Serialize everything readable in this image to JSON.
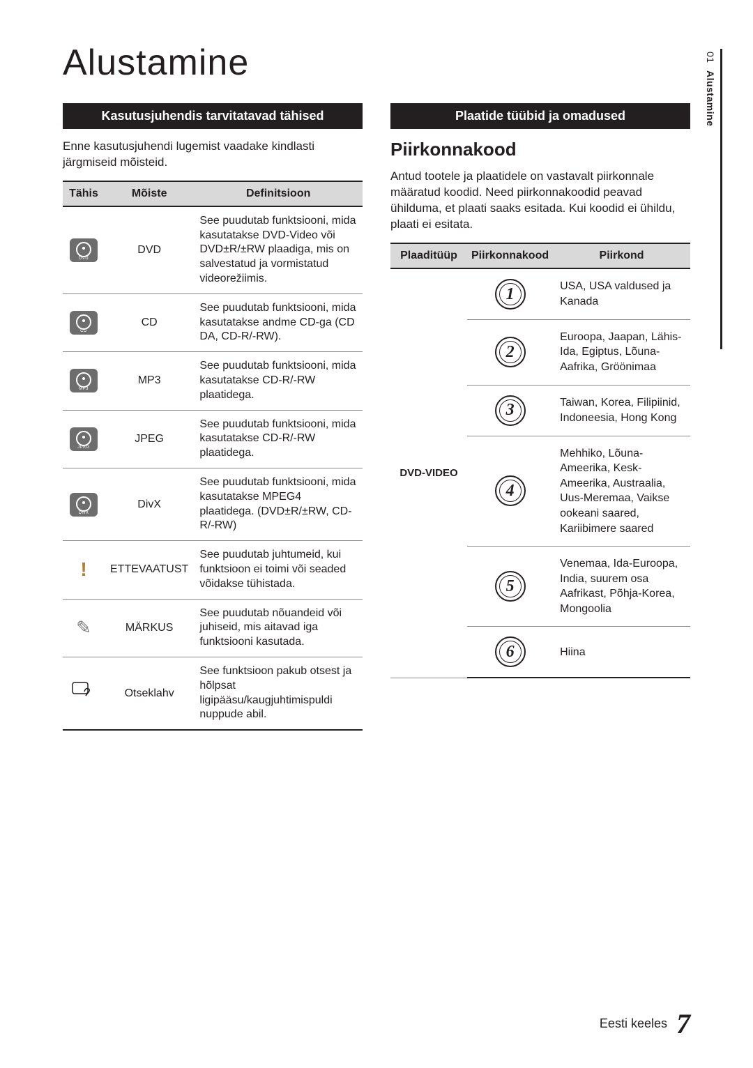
{
  "pageTitle": "Alustamine",
  "sideTab": {
    "num": "01",
    "label": "Alustamine"
  },
  "left": {
    "banner": "Kasutusjuhendis tarvitatavad tähised",
    "intro": "Enne kasutusjuhendi lugemist vaadake kindlasti järgmiseid mõisteid.",
    "headers": {
      "icon": "Tähis",
      "term": "Mõiste",
      "def": "Definitsioon"
    },
    "rows": [
      {
        "iconType": "disc",
        "iconLabel": "DVD",
        "term": "DVD",
        "def": "See puudutab funktsiooni, mida kasutatakse DVD-Video või DVD±R/±RW plaadiga, mis on salvestatud ja vormistatud videorežiimis."
      },
      {
        "iconType": "disc",
        "iconLabel": "CD",
        "term": "CD",
        "def": "See puudutab funktsiooni, mida kasutatakse andme CD-ga (CD DA, CD-R/-RW)."
      },
      {
        "iconType": "disc",
        "iconLabel": "MP3",
        "term": "MP3",
        "def": "See puudutab funktsiooni, mida kasutatakse CD-R/-RW plaatidega."
      },
      {
        "iconType": "disc",
        "iconLabel": "JPEG",
        "term": "JPEG",
        "def": "See puudutab funktsiooni, mida kasutatakse CD-R/-RW plaatidega."
      },
      {
        "iconType": "disc",
        "iconLabel": "DivX",
        "term": "DivX",
        "def": "See puudutab funktsiooni, mida kasutatakse MPEG4 plaatidega. (DVD±R/±RW, CD-R/-RW)"
      },
      {
        "iconType": "warn",
        "term": "ETTEVAATUST",
        "def": "See puudutab juhtumeid, kui funktsioon ei toimi või seaded võidakse tühistada."
      },
      {
        "iconType": "note",
        "term": "MÄRKUS",
        "def": "See puudutab nõuandeid või juhiseid, mis aitavad iga funktsiooni kasutada."
      },
      {
        "iconType": "hand",
        "term": "Otseklahv",
        "def": "See funktsioon pakub otsest ja hõlpsat ligipääsu/kaugjuhtimispuldi nuppude abil."
      }
    ]
  },
  "right": {
    "banner": "Plaatide tüübid ja omadused",
    "sectionTitle": "Piirkonnakood",
    "intro": "Antud tootele ja plaatidele on vastavalt piirkonnale määratud koodid. Need piirkonnakoodid peavad ühilduma, et plaati saaks esitada. Kui koodid ei ühildu, plaati ei esitata.",
    "headers": {
      "type": "Plaaditüüp",
      "code": "Piirkonnakood",
      "region": "Piirkond"
    },
    "discType": "DVD-VIDEO",
    "rows": [
      {
        "code": "1",
        "region": "USA, USA valdused ja Kanada"
      },
      {
        "code": "2",
        "region": "Euroopa, Jaapan, Lähis-Ida, Egiptus, Lõuna-Aafrika, Gröönimaa"
      },
      {
        "code": "3",
        "region": "Taiwan, Korea, Filipiinid, Indoneesia, Hong Kong"
      },
      {
        "code": "4",
        "region": "Mehhiko, Lõuna-Ameerika, Kesk-Ameerika, Austraalia, Uus-Meremaa, Vaikse ookeani saared, Kariibimere saared"
      },
      {
        "code": "5",
        "region": "Venemaa, Ida-Euroopa, India, suurem osa Aafrikast, Põhja-Korea, Mongoolia"
      },
      {
        "code": "6",
        "region": "Hiina"
      }
    ]
  },
  "footer": {
    "lang": "Eesti keeles",
    "page": "7"
  }
}
